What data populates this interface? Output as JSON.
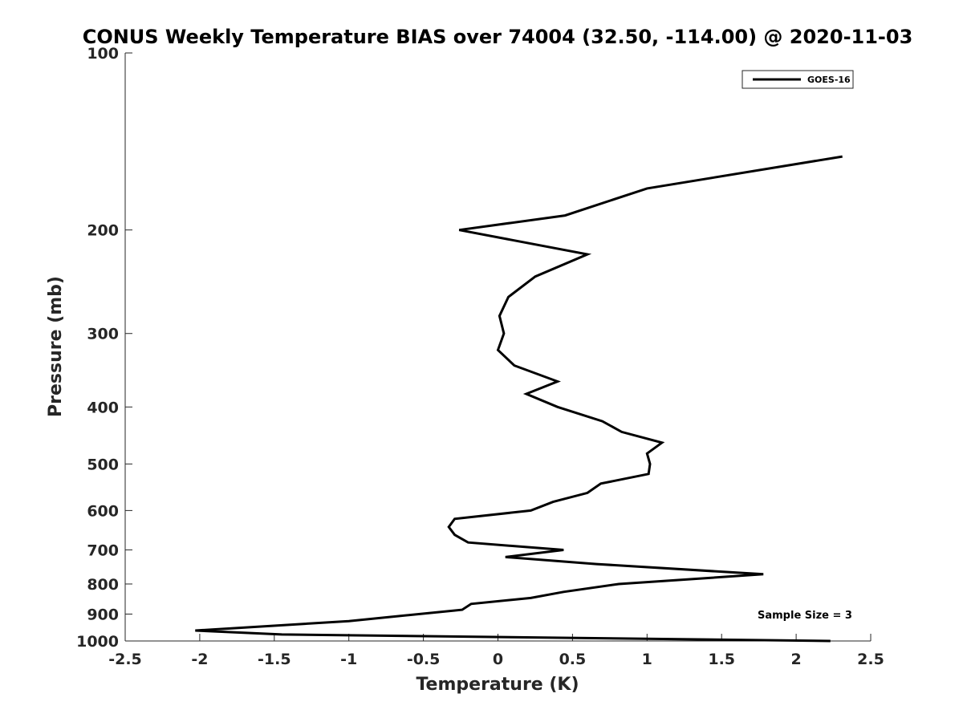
{
  "chart_data": {
    "type": "line",
    "title": "CONUS Weekly Temperature BIAS over 74004 (32.50, -114.00) @ 2020-11-03",
    "xlabel": "Temperature (K)",
    "ylabel": "Pressure (mb)",
    "xlim": [
      -2.5,
      2.5
    ],
    "ylim": [
      100,
      1000
    ],
    "yscale": "log",
    "yreversed": true,
    "xticks": [
      -2.5,
      -2,
      -1.5,
      -1,
      -0.5,
      0,
      0.5,
      1,
      1.5,
      2,
      2.5
    ],
    "xtick_labels": [
      "-2.5",
      "-2",
      "-1.5",
      "-1",
      "-0.5",
      "0",
      "0.5",
      "1",
      "1.5",
      "2",
      "2.5"
    ],
    "yticks": [
      100,
      200,
      300,
      400,
      500,
      600,
      700,
      800,
      900,
      1000
    ],
    "ytick_labels": [
      "100",
      "200",
      "300",
      "400",
      "500",
      "600",
      "700",
      "800",
      "900",
      "1000"
    ],
    "grid": false,
    "legend": "top-right",
    "annotation": "Sample Size = 3",
    "series": [
      {
        "name": "GOES-16",
        "color": "#000000",
        "points": [
          [
            2.31,
            150
          ],
          [
            1.0,
            170
          ],
          [
            0.45,
            189
          ],
          [
            -0.26,
            200
          ],
          [
            0.6,
            220
          ],
          [
            0.25,
            240
          ],
          [
            0.07,
            260
          ],
          [
            0.01,
            280
          ],
          [
            0.04,
            300
          ],
          [
            0.0,
            320
          ],
          [
            0.11,
            340
          ],
          [
            0.4,
            362
          ],
          [
            0.19,
            380
          ],
          [
            0.4,
            400
          ],
          [
            0.7,
            423
          ],
          [
            0.83,
            441
          ],
          [
            1.1,
            460
          ],
          [
            1.0,
            480
          ],
          [
            1.02,
            500
          ],
          [
            1.01,
            520
          ],
          [
            0.69,
            540
          ],
          [
            0.6,
            560
          ],
          [
            0.37,
            580
          ],
          [
            0.22,
            600
          ],
          [
            -0.29,
            620
          ],
          [
            -0.33,
            640
          ],
          [
            -0.29,
            660
          ],
          [
            -0.2,
            680
          ],
          [
            0.44,
            700
          ],
          [
            0.05,
            720
          ],
          [
            0.66,
            740
          ],
          [
            1.78,
            770
          ],
          [
            0.81,
            800
          ],
          [
            0.44,
            825
          ],
          [
            0.22,
            845
          ],
          [
            -0.18,
            865
          ],
          [
            -0.24,
            885
          ],
          [
            -1.0,
            925
          ],
          [
            -2.03,
            960
          ],
          [
            -1.45,
            975
          ],
          [
            2.23,
            1000
          ]
        ]
      }
    ]
  }
}
